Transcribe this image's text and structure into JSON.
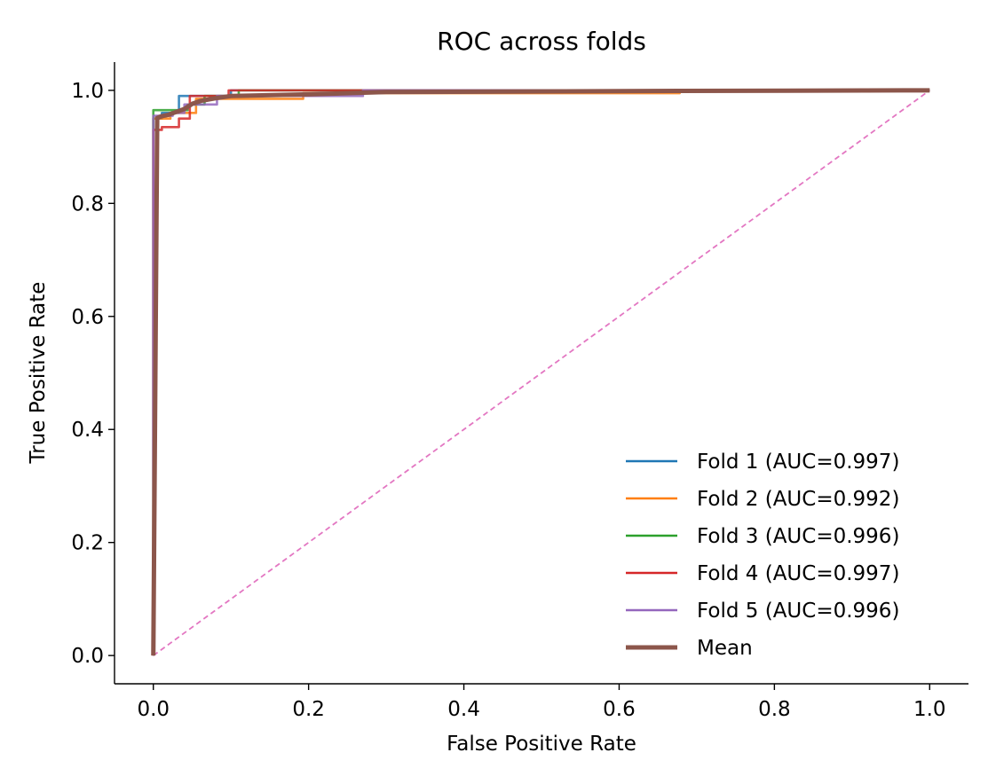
{
  "chart_data": {
    "type": "line",
    "title": "ROC across folds",
    "xlabel": "False Positive Rate",
    "ylabel": "True Positive Rate",
    "xlim": [
      -0.05,
      1.05
    ],
    "ylim": [
      -0.05,
      1.05
    ],
    "xticks": [
      {
        "value": 0.0,
        "label": "0.0"
      },
      {
        "value": 0.2,
        "label": "0.2"
      },
      {
        "value": 0.4,
        "label": "0.4"
      },
      {
        "value": 0.6,
        "label": "0.6"
      },
      {
        "value": 0.8,
        "label": "0.8"
      },
      {
        "value": 1.0,
        "label": "1.0"
      }
    ],
    "yticks": [
      {
        "value": 0.0,
        "label": "0.0"
      },
      {
        "value": 0.2,
        "label": "0.2"
      },
      {
        "value": 0.4,
        "label": "0.4"
      },
      {
        "value": 0.6,
        "label": "0.6"
      },
      {
        "value": 0.8,
        "label": "0.8"
      },
      {
        "value": 1.0,
        "label": "1.0"
      }
    ],
    "grid": false,
    "legend_position": "lower-right",
    "series": [
      {
        "name": "Fold 1 (AUC=0.997)",
        "color": "#1f77b4",
        "x": [
          0.0,
          0.0,
          0.011,
          0.011,
          0.033,
          0.033,
          0.1,
          0.1,
          1.0
        ],
        "y": [
          0.0,
          0.95,
          0.95,
          0.96,
          0.96,
          0.99,
          0.99,
          1.0,
          1.0
        ]
      },
      {
        "name": "Fold 2 (AUC=0.992)",
        "color": "#ff7f0e",
        "x": [
          0.0,
          0.0,
          0.022,
          0.022,
          0.055,
          0.055,
          0.193,
          0.193,
          0.678,
          0.678,
          1.0
        ],
        "y": [
          0.0,
          0.95,
          0.95,
          0.96,
          0.96,
          0.985,
          0.985,
          0.995,
          0.995,
          1.0,
          1.0
        ]
      },
      {
        "name": "Fold 3 (AUC=0.996)",
        "color": "#2ca02c",
        "x": [
          0.0,
          0.0,
          0.044,
          0.044,
          0.066,
          0.066,
          0.11,
          0.11,
          1.0
        ],
        "y": [
          0.0,
          0.965,
          0.965,
          0.975,
          0.975,
          0.99,
          0.99,
          1.0,
          1.0
        ]
      },
      {
        "name": "Fold 4 (AUC=0.997)",
        "color": "#d62728",
        "x": [
          0.0,
          0.0,
          0.011,
          0.011,
          0.033,
          0.033,
          0.047,
          0.047,
          0.097,
          0.097,
          1.0
        ],
        "y": [
          0.0,
          0.93,
          0.93,
          0.935,
          0.935,
          0.95,
          0.95,
          0.99,
          0.99,
          1.0,
          1.0
        ]
      },
      {
        "name": "Fold 5 (AUC=0.996)",
        "color": "#9467bd",
        "x": [
          0.0,
          0.0,
          0.025,
          0.025,
          0.04,
          0.04,
          0.082,
          0.082,
          0.27,
          0.27,
          1.0
        ],
        "y": [
          0.0,
          0.955,
          0.955,
          0.96,
          0.96,
          0.975,
          0.975,
          0.99,
          0.99,
          1.0,
          1.0
        ]
      },
      {
        "name": "Mean",
        "color": "#8c564b",
        "x": [
          0.0,
          0.005,
          0.01,
          0.02,
          0.03,
          0.04,
          0.05,
          0.06,
          0.08,
          0.1,
          0.2,
          0.3,
          0.68,
          1.0
        ],
        "y": [
          0.0,
          0.951,
          0.954,
          0.957,
          0.962,
          0.967,
          0.976,
          0.981,
          0.986,
          0.99,
          0.993,
          0.997,
          0.999,
          1.0
        ]
      }
    ],
    "reference_line": {
      "color": "#e377c2",
      "x": [
        0.0,
        1.0
      ],
      "y": [
        0.0,
        1.0
      ]
    }
  }
}
